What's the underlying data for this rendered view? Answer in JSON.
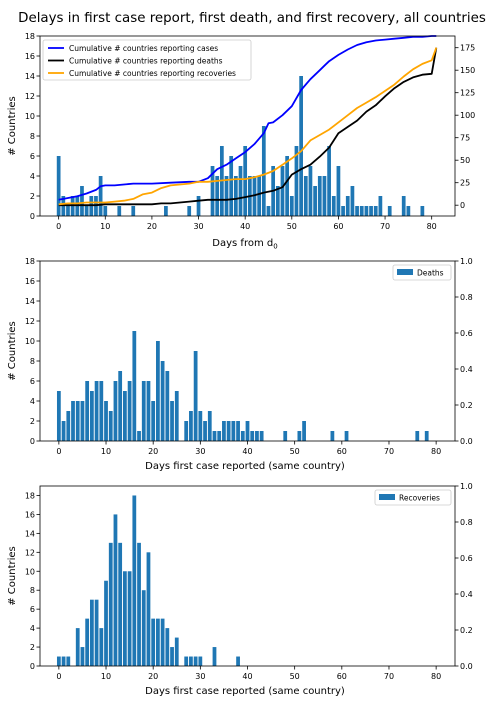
{
  "figure_title": "Delays in first case report, first death, and first recovery, all countries",
  "colors": {
    "bars": "#1f77b4",
    "cases": "#0000ff",
    "deaths": "#000000",
    "recoveries": "#ffa500"
  },
  "chart_data": [
    {
      "type": "bar+line",
      "xlabel": "Days from d",
      "xlabel_subscript": "0",
      "ylabel": "# Countries",
      "xlim": [
        -4,
        85
      ],
      "ylim": [
        0,
        18
      ],
      "y2lim": [
        -12,
        188
      ],
      "xticks": [
        0,
        10,
        20,
        30,
        40,
        50,
        60,
        70,
        80
      ],
      "yticks": [
        0,
        2,
        4,
        6,
        8,
        10,
        12,
        14,
        16,
        18
      ],
      "y2ticks": [
        0,
        25,
        50,
        75,
        100,
        125,
        150,
        175
      ],
      "bars": {
        "x": [
          0,
          1,
          2,
          3,
          4,
          5,
          6,
          7,
          8,
          9,
          10,
          13,
          16,
          23,
          28,
          30,
          33,
          34,
          35,
          36,
          37,
          38,
          39,
          40,
          41,
          42,
          43,
          44,
          45,
          46,
          47,
          48,
          49,
          50,
          51,
          52,
          53,
          54,
          55,
          56,
          57,
          58,
          59,
          60,
          61,
          62,
          63,
          64,
          65,
          66,
          67,
          68,
          69,
          71,
          74,
          75,
          78
        ],
        "values": [
          6,
          2,
          1,
          2,
          2,
          3,
          1,
          2,
          2,
          4,
          1,
          1,
          1,
          1,
          1,
          2,
          5,
          4,
          7,
          4,
          6,
          4,
          5,
          7,
          4,
          4,
          4,
          9,
          1,
          5,
          3,
          5,
          6,
          2,
          7,
          14,
          4,
          5,
          3,
          4,
          4,
          7,
          2,
          5,
          1,
          2,
          3,
          1,
          1,
          1,
          1,
          1,
          2,
          1,
          2,
          1,
          1
        ]
      },
      "legend": {
        "location": "upper left",
        "entries": [
          "Cumulative # countries reporting cases",
          "Cumulative # countries reporting deaths",
          "Cumulative # countries reporting recoveries"
        ]
      },
      "series": [
        {
          "name": "Cumulative # countries reporting cases",
          "x": [
            0,
            2,
            4,
            6,
            8,
            9,
            10,
            12,
            14,
            16,
            20,
            24,
            28,
            30,
            32,
            34,
            36,
            38,
            40,
            42,
            44,
            45,
            46,
            48,
            50,
            52,
            54,
            56,
            57,
            58,
            60,
            62,
            64,
            66,
            68,
            70,
            72,
            74,
            76,
            78,
            80,
            81
          ],
          "y": [
            6,
            8,
            10,
            13,
            17,
            21,
            22,
            22,
            23,
            24,
            24,
            25,
            26,
            26,
            30,
            40,
            45,
            52,
            59,
            68,
            80,
            91,
            92,
            100,
            110,
            128,
            140,
            150,
            155,
            160,
            167,
            173,
            178,
            181,
            183,
            184,
            185,
            186,
            187,
            187,
            188,
            188
          ]
        },
        {
          "name": "Cumulative # countries reporting deaths",
          "x": [
            0,
            2,
            4,
            6,
            8,
            10,
            12,
            14,
            16,
            18,
            20,
            22,
            24,
            26,
            28,
            30,
            32,
            34,
            36,
            38,
            40,
            42,
            44,
            46,
            48,
            50,
            52,
            54,
            56,
            58,
            60,
            62,
            64,
            66,
            68,
            70,
            72,
            74,
            76,
            78,
            80,
            81
          ],
          "y": [
            0,
            0,
            0,
            0,
            0,
            1,
            1,
            1,
            1,
            1,
            1,
            2,
            2,
            3,
            4,
            5,
            6,
            6,
            6,
            7,
            9,
            11,
            14,
            16,
            20,
            34,
            40,
            45,
            54,
            64,
            80,
            87,
            94,
            104,
            111,
            121,
            130,
            137,
            142,
            145,
            146,
            175
          ]
        },
        {
          "name": "Cumulative # countries reporting recoveries",
          "x": [
            0,
            2,
            4,
            6,
            8,
            10,
            12,
            14,
            16,
            18,
            20,
            22,
            24,
            26,
            28,
            30,
            32,
            34,
            36,
            38,
            40,
            42,
            44,
            46,
            48,
            50,
            52,
            54,
            56,
            58,
            60,
            62,
            64,
            66,
            68,
            70,
            72,
            74,
            76,
            78,
            80,
            81
          ],
          "y": [
            1,
            2,
            2,
            3,
            3,
            3,
            4,
            5,
            7,
            12,
            14,
            19,
            22,
            23,
            24,
            26,
            26,
            27,
            28,
            29,
            29,
            31,
            34,
            38,
            45,
            52,
            60,
            72,
            78,
            84,
            92,
            100,
            108,
            114,
            120,
            127,
            134,
            143,
            151,
            157,
            161,
            175
          ]
        }
      ]
    },
    {
      "type": "bar",
      "xlabel": "Days first case reported (same country)",
      "ylabel": "# Countries",
      "xlim": [
        -4,
        84
      ],
      "ylim": [
        0,
        18
      ],
      "y2lim": [
        0,
        1
      ],
      "xticks": [
        0,
        10,
        20,
        30,
        40,
        50,
        60,
        70,
        80
      ],
      "yticks": [
        0,
        2,
        4,
        6,
        8,
        10,
        12,
        14,
        16,
        18
      ],
      "y2ticks": [
        0.0,
        0.2,
        0.4,
        0.6,
        0.8,
        1.0
      ],
      "legend": {
        "location": "upper right",
        "entries": [
          "Deaths"
        ]
      },
      "series": [
        {
          "name": "Deaths",
          "x": [
            0,
            1,
            2,
            3,
            4,
            5,
            6,
            7,
            8,
            9,
            10,
            11,
            12,
            13,
            14,
            15,
            16,
            17,
            18,
            19,
            20,
            21,
            22,
            23,
            24,
            25,
            27,
            28,
            29,
            30,
            31,
            32,
            33,
            34,
            35,
            36,
            37,
            38,
            39,
            40,
            41,
            42,
            43,
            48,
            51,
            52,
            58,
            61,
            76,
            78
          ],
          "values": [
            5,
            2,
            3,
            4,
            4,
            4,
            6,
            5,
            6,
            6,
            4,
            3,
            6,
            7,
            5,
            6,
            11,
            1,
            6,
            6,
            4,
            10,
            8,
            7,
            4,
            5,
            2,
            3,
            9,
            3,
            2,
            3,
            1,
            1,
            2,
            2,
            2,
            2,
            1,
            2,
            1,
            1,
            1,
            1,
            1,
            2,
            1,
            1,
            1,
            1
          ]
        }
      ]
    },
    {
      "type": "bar",
      "xlabel": "Days first case reported (same country)",
      "ylabel": "# Countries",
      "xlim": [
        -4,
        84
      ],
      "ylim": [
        0,
        19
      ],
      "y2lim": [
        0,
        1
      ],
      "xticks": [
        0,
        10,
        20,
        30,
        40,
        50,
        60,
        70,
        80
      ],
      "yticks": [
        0,
        2,
        4,
        6,
        8,
        10,
        12,
        14,
        16,
        18
      ],
      "y2ticks": [
        0.0,
        0.2,
        0.4,
        0.6,
        0.8,
        1.0
      ],
      "legend": {
        "location": "upper right",
        "entries": [
          "Recoveries"
        ]
      },
      "series": [
        {
          "name": "Recoveries",
          "x": [
            0,
            1,
            2,
            4,
            5,
            6,
            7,
            8,
            9,
            10,
            11,
            12,
            13,
            14,
            15,
            16,
            17,
            18,
            19,
            20,
            21,
            22,
            23,
            24,
            25,
            27,
            28,
            29,
            30,
            33,
            38
          ],
          "values": [
            1,
            1,
            1,
            4,
            2,
            5,
            7,
            7,
            4,
            9,
            13,
            16,
            13,
            10,
            10,
            18,
            13,
            8,
            12,
            5,
            5,
            5,
            4,
            2,
            3,
            1,
            1,
            1,
            1,
            2,
            1
          ]
        }
      ]
    }
  ]
}
